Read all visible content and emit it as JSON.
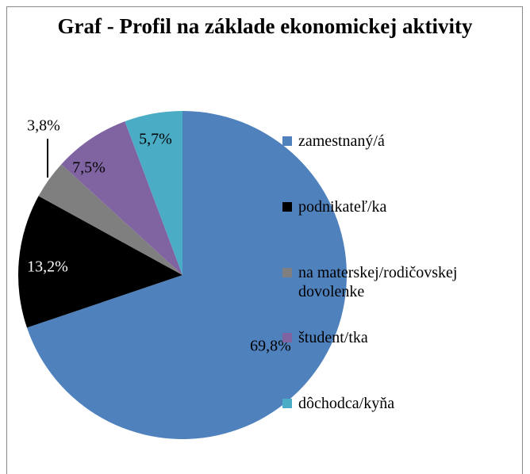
{
  "chart_data": {
    "type": "pie",
    "title": "Graf - Profil na základe ekonomickej aktivity",
    "categories": [
      "zamestnaný/á",
      "podnikateľ/ka",
      "na materskej/rodičovskej dovolenke",
      "študent/tka",
      "dôchodca/kyňa"
    ],
    "values": [
      69.8,
      13.2,
      3.8,
      7.5,
      5.7
    ],
    "value_labels": [
      "69,8%",
      "13,2%",
      "3,8%",
      "7,5%",
      "5,7%"
    ],
    "colors": [
      "#4f81bd",
      "#000000",
      "#7f7f7f",
      "#8064a2",
      "#4bacc6"
    ],
    "legend": "right"
  }
}
